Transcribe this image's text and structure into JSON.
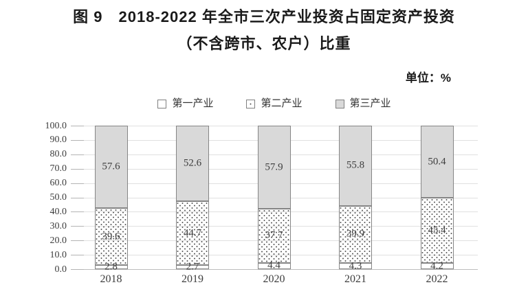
{
  "figure": {
    "title_line1": "图 9　2018-2022 年全市三次产业投资占固定资产投资",
    "title_line2": "（不含跨市、农户）比重",
    "unit_label": "单位：%"
  },
  "chart_data": {
    "type": "bar",
    "stacked": true,
    "title": "2018-2022 年全市三次产业投资占固定资产投资（不含跨市、农户）比重",
    "xlabel": "",
    "ylabel": "单位：%",
    "categories": [
      "2018",
      "2019",
      "2020",
      "2021",
      "2022"
    ],
    "series": [
      {
        "name": "第一产业",
        "pattern": "white",
        "values": [
          2.8,
          2.7,
          4.4,
          4.3,
          4.2
        ]
      },
      {
        "name": "第二产业",
        "pattern": "dotted",
        "values": [
          39.6,
          44.7,
          37.7,
          39.9,
          45.4
        ]
      },
      {
        "name": "第三产业",
        "pattern": "gray",
        "values": [
          57.6,
          52.6,
          57.9,
          55.8,
          50.4
        ]
      }
    ],
    "ylim": [
      0,
      100
    ],
    "ytick_step": 10,
    "ytick_labels": [
      "0.0",
      "10.0",
      "20.0",
      "30.0",
      "40.0",
      "50.0",
      "60.0",
      "70.0",
      "80.0",
      "90.0",
      "100.0"
    ],
    "grid": true,
    "legend_position": "top",
    "colors": {
      "tertiary_fill": "#d9d9d9",
      "bar_border": "#858585",
      "gridline": "#e0e0e0",
      "text": "#3d3d3d"
    }
  }
}
